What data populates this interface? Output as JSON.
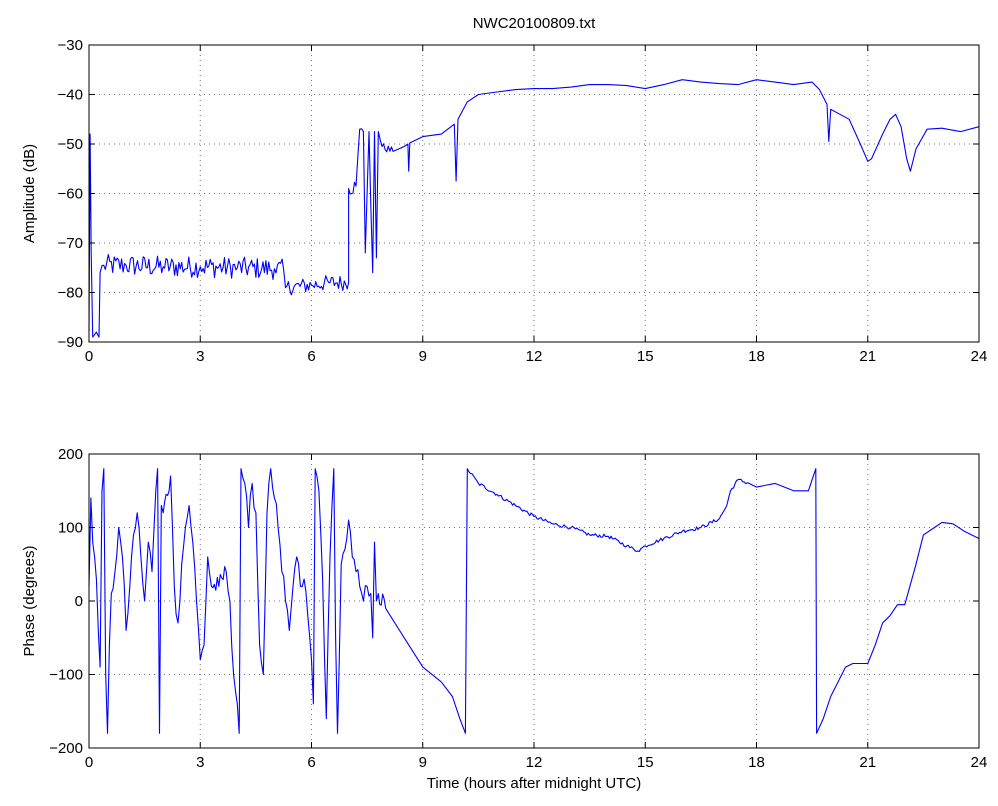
{
  "chart_data": [
    {
      "type": "line",
      "title": "NWC20100809.txt",
      "xlabel": "",
      "ylabel": "Amplitude (dB)",
      "xlim": [
        0,
        24
      ],
      "ylim": [
        -90,
        -30
      ],
      "xticks": [
        "0",
        "3",
        "6",
        "9",
        "12",
        "15",
        "18",
        "21",
        "24"
      ],
      "yticks": [
        "−30",
        "−40",
        "−50",
        "−60",
        "−70",
        "−80",
        "−90"
      ],
      "grid": true,
      "series": [
        {
          "color": "#0000ff",
          "noise": [
            {
              "from": 0.3,
              "to": 5.25,
              "amp": 2.2
            },
            {
              "from": 5.3,
              "to": 7.0,
              "amp": 1.6
            },
            {
              "from": 7.0,
              "to": 7.9,
              "amp": 0.8
            }
          ],
          "points": [
            [
              0.0,
              -88
            ],
            [
              0.03,
              -48
            ],
            [
              0.06,
              -72
            ],
            [
              0.1,
              -89
            ],
            [
              0.2,
              -88
            ],
            [
              0.27,
              -89
            ],
            [
              0.3,
              -76
            ],
            [
              0.4,
              -74.5
            ],
            [
              1.0,
              -74.5
            ],
            [
              2.0,
              -74.8
            ],
            [
              3.0,
              -74.8
            ],
            [
              4.0,
              -75
            ],
            [
              5.0,
              -75.2
            ],
            [
              5.25,
              -75.5
            ],
            [
              5.3,
              -79
            ],
            [
              6.0,
              -78.5
            ],
            [
              6.5,
              -78
            ],
            [
              7.0,
              -78
            ],
            [
              7.0,
              -59
            ],
            [
              7.2,
              -58.5
            ],
            [
              7.3,
              -47
            ],
            [
              7.4,
              -47.5
            ],
            [
              7.45,
              -72
            ],
            [
              7.55,
              -47.5
            ],
            [
              7.65,
              -76
            ],
            [
              7.7,
              -47.5
            ],
            [
              7.75,
              -73
            ],
            [
              7.8,
              -47.5
            ],
            [
              7.9,
              -50.5
            ],
            [
              8.2,
              -51.5
            ],
            [
              8.5,
              -50.5
            ],
            [
              8.6,
              -50
            ],
            [
              8.62,
              -55.5
            ],
            [
              8.65,
              -49.8
            ],
            [
              9.0,
              -48.5
            ],
            [
              9.5,
              -48
            ],
            [
              9.85,
              -46
            ],
            [
              9.9,
              -57.5
            ],
            [
              9.95,
              -45
            ],
            [
              10.2,
              -41.5
            ],
            [
              10.5,
              -40
            ],
            [
              11.0,
              -39.5
            ],
            [
              11.5,
              -39
            ],
            [
              12.0,
              -38.8
            ],
            [
              12.5,
              -38.8
            ],
            [
              13.0,
              -38.5
            ],
            [
              13.5,
              -38
            ],
            [
              14.0,
              -38
            ],
            [
              14.5,
              -38.2
            ],
            [
              15.0,
              -38.8
            ],
            [
              15.5,
              -38
            ],
            [
              16.0,
              -37
            ],
            [
              16.5,
              -37.5
            ],
            [
              17.0,
              -37.8
            ],
            [
              17.5,
              -38
            ],
            [
              18.0,
              -37
            ],
            [
              18.5,
              -37.5
            ],
            [
              19.0,
              -38
            ],
            [
              19.5,
              -37.5
            ],
            [
              19.7,
              -39
            ],
            [
              19.9,
              -42
            ],
            [
              19.95,
              -49.5
            ],
            [
              20.0,
              -43
            ],
            [
              20.5,
              -45
            ],
            [
              20.8,
              -50
            ],
            [
              21.0,
              -53.5
            ],
            [
              21.1,
              -53
            ],
            [
              21.4,
              -48
            ],
            [
              21.6,
              -45
            ],
            [
              21.75,
              -44
            ],
            [
              21.9,
              -46.5
            ],
            [
              22.05,
              -53
            ],
            [
              22.15,
              -55.5
            ],
            [
              22.3,
              -51
            ],
            [
              22.6,
              -47
            ],
            [
              23.0,
              -46.8
            ],
            [
              23.5,
              -47.5
            ],
            [
              24.0,
              -46.5
            ]
          ]
        }
      ]
    },
    {
      "type": "line",
      "title": "",
      "xlabel": "Time (hours after midnight UTC)",
      "ylabel": "Phase (degrees)",
      "xlim": [
        0,
        24
      ],
      "ylim": [
        -200,
        200
      ],
      "xticks": [
        "0",
        "3",
        "6",
        "9",
        "12",
        "15",
        "18",
        "21",
        "24"
      ],
      "yticks": [
        "200",
        "100",
        "0",
        "−100",
        "−200"
      ],
      "grid": true,
      "series": [
        {
          "color": "#0000ff",
          "noise": [
            {
              "from": 0.0,
              "to": 7.9,
              "amp": 14
            },
            {
              "from": 10.3,
              "to": 17.5,
              "amp": 2.5
            }
          ],
          "points": [
            [
              0.0,
              20
            ],
            [
              0.05,
              140
            ],
            [
              0.1,
              80
            ],
            [
              0.15,
              60
            ],
            [
              0.2,
              30
            ],
            [
              0.25,
              -40
            ],
            [
              0.3,
              -90
            ],
            [
              0.35,
              150
            ],
            [
              0.4,
              180
            ],
            [
              0.45,
              -100
            ],
            [
              0.5,
              -180
            ],
            [
              0.55,
              -60
            ],
            [
              0.6,
              10
            ],
            [
              0.7,
              40
            ],
            [
              0.8,
              100
            ],
            [
              0.9,
              60
            ],
            [
              1.0,
              -40
            ],
            [
              1.1,
              20
            ],
            [
              1.2,
              90
            ],
            [
              1.3,
              120
            ],
            [
              1.4,
              60
            ],
            [
              1.5,
              0
            ],
            [
              1.6,
              80
            ],
            [
              1.7,
              40
            ],
            [
              1.8,
              150
            ],
            [
              1.85,
              180
            ],
            [
              1.9,
              -180
            ],
            [
              1.95,
              130
            ],
            [
              2.0,
              120
            ],
            [
              2.2,
              170
            ],
            [
              2.3,
              20
            ],
            [
              2.4,
              -30
            ],
            [
              2.5,
              50
            ],
            [
              2.6,
              100
            ],
            [
              2.7,
              130
            ],
            [
              2.8,
              80
            ],
            [
              2.9,
              0
            ],
            [
              3.0,
              -80
            ],
            [
              3.1,
              -60
            ],
            [
              3.2,
              60
            ],
            [
              3.3,
              20
            ],
            [
              3.5,
              20
            ],
            [
              3.7,
              40
            ],
            [
              3.8,
              0
            ],
            [
              3.9,
              -100
            ],
            [
              4.0,
              -140
            ],
            [
              4.05,
              -180
            ],
            [
              4.1,
              180
            ],
            [
              4.2,
              160
            ],
            [
              4.3,
              100
            ],
            [
              4.4,
              160
            ],
            [
              4.5,
              120
            ],
            [
              4.6,
              -60
            ],
            [
              4.7,
              -100
            ],
            [
              4.8,
              120
            ],
            [
              4.9,
              180
            ],
            [
              5.0,
              140
            ],
            [
              5.1,
              100
            ],
            [
              5.2,
              40
            ],
            [
              5.3,
              0
            ],
            [
              5.4,
              -40
            ],
            [
              5.5,
              20
            ],
            [
              5.6,
              60
            ],
            [
              5.7,
              20
            ],
            [
              5.8,
              30
            ],
            [
              5.9,
              -20
            ],
            [
              6.0,
              -80
            ],
            [
              6.05,
              -140
            ],
            [
              6.1,
              180
            ],
            [
              6.2,
              150
            ],
            [
              6.3,
              30
            ],
            [
              6.4,
              -160
            ],
            [
              6.5,
              60
            ],
            [
              6.6,
              180
            ],
            [
              6.65,
              -50
            ],
            [
              6.7,
              -180
            ],
            [
              6.8,
              50
            ],
            [
              6.9,
              70
            ],
            [
              7.0,
              110
            ],
            [
              7.1,
              60
            ],
            [
              7.2,
              40
            ],
            [
              7.3,
              20
            ],
            [
              7.4,
              0
            ],
            [
              7.5,
              20
            ],
            [
              7.6,
              10
            ],
            [
              7.65,
              -50
            ],
            [
              7.7,
              80
            ],
            [
              7.75,
              0
            ],
            [
              7.8,
              10
            ],
            [
              8.0,
              -10
            ],
            [
              8.5,
              -50
            ],
            [
              9.0,
              -90
            ],
            [
              9.5,
              -110
            ],
            [
              9.8,
              -130
            ],
            [
              10.0,
              -160
            ],
            [
              10.15,
              -180
            ],
            [
              10.2,
              180
            ],
            [
              10.5,
              160
            ],
            [
              11.0,
              145
            ],
            [
              11.5,
              130
            ],
            [
              12.0,
              115
            ],
            [
              12.5,
              105
            ],
            [
              13.0,
              100
            ],
            [
              13.5,
              90
            ],
            [
              14.0,
              88
            ],
            [
              14.5,
              75
            ],
            [
              14.8,
              68
            ],
            [
              15.0,
              75
            ],
            [
              15.5,
              85
            ],
            [
              16.0,
              95
            ],
            [
              16.5,
              100
            ],
            [
              17.0,
              112
            ],
            [
              17.2,
              130
            ],
            [
              17.3,
              150
            ],
            [
              17.5,
              165
            ],
            [
              17.8,
              160
            ],
            [
              18.0,
              155
            ],
            [
              18.5,
              160
            ],
            [
              19.0,
              150
            ],
            [
              19.4,
              150
            ],
            [
              19.6,
              180
            ],
            [
              19.62,
              -180
            ],
            [
              19.8,
              -160
            ],
            [
              20.0,
              -130
            ],
            [
              20.2,
              -110
            ],
            [
              20.4,
              -90
            ],
            [
              20.6,
              -85
            ],
            [
              20.8,
              -85
            ],
            [
              21.0,
              -85
            ],
            [
              21.2,
              -60
            ],
            [
              21.4,
              -30
            ],
            [
              21.6,
              -20
            ],
            [
              21.8,
              -5
            ],
            [
              22.0,
              -5
            ],
            [
              22.3,
              50
            ],
            [
              22.5,
              90
            ],
            [
              22.8,
              100
            ],
            [
              23.0,
              107
            ],
            [
              23.3,
              105
            ],
            [
              23.6,
              95
            ],
            [
              24.0,
              85
            ]
          ]
        }
      ]
    }
  ]
}
